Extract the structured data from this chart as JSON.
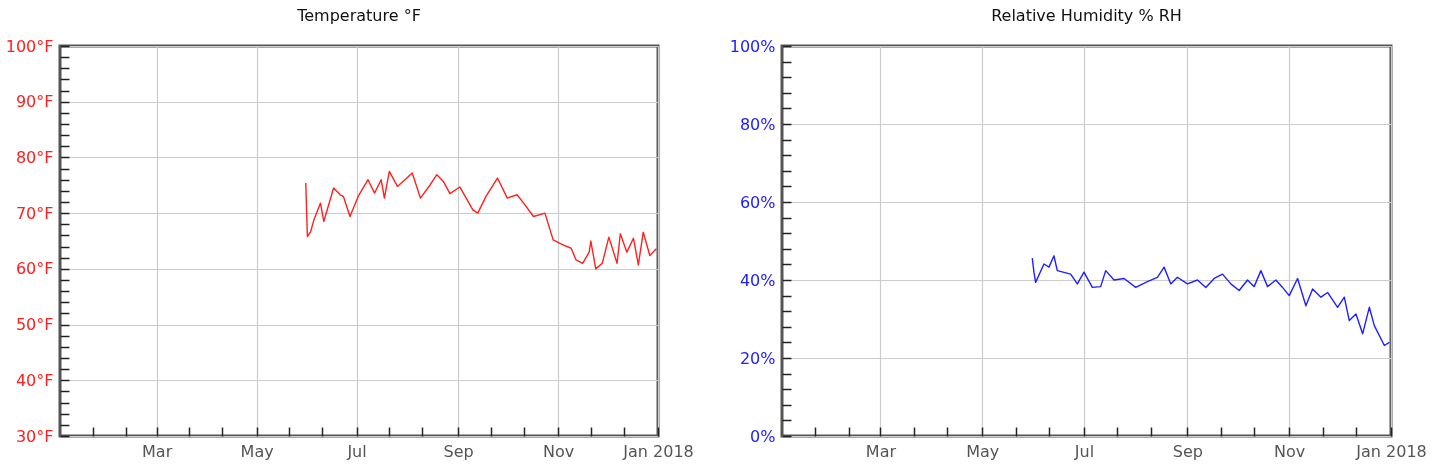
{
  "chart_data": [
    {
      "type": "line",
      "title": "Temperature °F",
      "grid": true,
      "xlim": [
        "2017-01-01",
        "2018-01-01"
      ],
      "ylim": [
        30,
        100
      ],
      "xticks": [
        {
          "value": "2017-01-21",
          "label": null
        },
        {
          "value": "2017-02-10",
          "label": null
        },
        {
          "value": "2017-03-01",
          "label": "Mar"
        },
        {
          "value": "2017-03-21",
          "label": null
        },
        {
          "value": "2017-04-10",
          "label": null
        },
        {
          "value": "2017-05-01",
          "label": "May"
        },
        {
          "value": "2017-05-21",
          "label": null
        },
        {
          "value": "2017-06-10",
          "label": null
        },
        {
          "value": "2017-07-01",
          "label": "Jul"
        },
        {
          "value": "2017-07-21",
          "label": null
        },
        {
          "value": "2017-08-10",
          "label": null
        },
        {
          "value": "2017-09-01",
          "label": "Sep"
        },
        {
          "value": "2017-09-21",
          "label": null
        },
        {
          "value": "2017-10-11",
          "label": null
        },
        {
          "value": "2017-11-01",
          "label": "Nov"
        },
        {
          "value": "2017-11-21",
          "label": null
        },
        {
          "value": "2017-12-11",
          "label": null
        },
        {
          "value": "2018-01-01",
          "label": "Jan 2018"
        }
      ],
      "yticks": [
        {
          "value": 30,
          "label": "30°F"
        },
        {
          "value": 32,
          "label": null
        },
        {
          "value": 34,
          "label": null
        },
        {
          "value": 36,
          "label": null
        },
        {
          "value": 38,
          "label": null
        },
        {
          "value": 40,
          "label": "40°F"
        },
        {
          "value": 42,
          "label": null
        },
        {
          "value": 44,
          "label": null
        },
        {
          "value": 46,
          "label": null
        },
        {
          "value": 48,
          "label": null
        },
        {
          "value": 50,
          "label": "50°F"
        },
        {
          "value": 52,
          "label": null
        },
        {
          "value": 54,
          "label": null
        },
        {
          "value": 56,
          "label": null
        },
        {
          "value": 58,
          "label": null
        },
        {
          "value": 60,
          "label": "60°F"
        },
        {
          "value": 62,
          "label": null
        },
        {
          "value": 64,
          "label": null
        },
        {
          "value": 66,
          "label": null
        },
        {
          "value": 68,
          "label": null
        },
        {
          "value": 70,
          "label": "70°F"
        },
        {
          "value": 72,
          "label": null
        },
        {
          "value": 74,
          "label": null
        },
        {
          "value": 76,
          "label": null
        },
        {
          "value": 78,
          "label": null
        },
        {
          "value": 80,
          "label": "80°F"
        },
        {
          "value": 82,
          "label": null
        },
        {
          "value": 84,
          "label": null
        },
        {
          "value": 86,
          "label": null
        },
        {
          "value": 88,
          "label": null
        },
        {
          "value": 90,
          "label": "90°F"
        },
        {
          "value": 92,
          "label": null
        },
        {
          "value": 94,
          "label": null
        },
        {
          "value": 96,
          "label": null
        },
        {
          "value": 98,
          "label": null
        },
        {
          "value": 100,
          "label": "100°F"
        }
      ],
      "x": [
        "2017-05-31",
        "2017-06-01",
        "2017-06-03",
        "2017-06-05",
        "2017-06-09",
        "2017-06-11",
        "2017-06-17",
        "2017-06-21",
        "2017-06-23",
        "2017-06-27",
        "2017-07-02",
        "2017-07-08",
        "2017-07-12",
        "2017-07-16",
        "2017-07-18",
        "2017-07-21",
        "2017-07-26",
        "2017-08-04",
        "2017-08-09",
        "2017-08-15",
        "2017-08-19",
        "2017-08-23",
        "2017-08-27",
        "2017-09-02",
        "2017-09-10",
        "2017-09-13",
        "2017-09-18",
        "2017-09-25",
        "2017-10-01",
        "2017-10-07",
        "2017-10-11",
        "2017-10-17",
        "2017-10-24",
        "2017-10-29",
        "2017-11-04",
        "2017-11-09",
        "2017-11-12",
        "2017-11-16",
        "2017-11-20",
        "2017-11-21",
        "2017-11-24",
        "2017-11-28",
        "2017-12-02",
        "2017-12-07",
        "2017-12-09",
        "2017-12-13",
        "2017-12-17",
        "2017-12-20",
        "2017-12-23",
        "2017-12-27",
        "2017-12-31"
      ],
      "series": [
        {
          "color": "#ff2020",
          "values": [
            75.4,
            65.8,
            66.7,
            68.8,
            71.8,
            68.5,
            74.5,
            73.3,
            73,
            69.4,
            73,
            76,
            73.6,
            76,
            72.7,
            77.5,
            74.8,
            77.2,
            72.7,
            75.1,
            76.9,
            75.7,
            73.5,
            74.7,
            70.6,
            70,
            73,
            76.3,
            72.7,
            73.3,
            71.8,
            69.4,
            70,
            65.2,
            64.3,
            63.7,
            61.6,
            61,
            63,
            65,
            60,
            61,
            65.7,
            61,
            66.3,
            63,
            65.5,
            60.7,
            66.6,
            62.4,
            63.6
          ]
        }
      ]
    },
    {
      "type": "line",
      "title": "Relative Humidity % RH",
      "grid": true,
      "xlim": [
        "2017-01-01",
        "2018-01-01"
      ],
      "ylim": [
        0,
        100
      ],
      "xticks": [
        {
          "value": "2017-01-21",
          "label": null
        },
        {
          "value": "2017-02-10",
          "label": null
        },
        {
          "value": "2017-03-01",
          "label": "Mar"
        },
        {
          "value": "2017-03-21",
          "label": null
        },
        {
          "value": "2017-04-10",
          "label": null
        },
        {
          "value": "2017-05-01",
          "label": "May"
        },
        {
          "value": "2017-05-21",
          "label": null
        },
        {
          "value": "2017-06-10",
          "label": null
        },
        {
          "value": "2017-07-01",
          "label": "Jul"
        },
        {
          "value": "2017-07-21",
          "label": null
        },
        {
          "value": "2017-08-10",
          "label": null
        },
        {
          "value": "2017-09-01",
          "label": "Sep"
        },
        {
          "value": "2017-09-21",
          "label": null
        },
        {
          "value": "2017-10-11",
          "label": null
        },
        {
          "value": "2017-11-01",
          "label": "Nov"
        },
        {
          "value": "2017-11-21",
          "label": null
        },
        {
          "value": "2017-12-11",
          "label": null
        },
        {
          "value": "2018-01-01",
          "label": "Jan 2018"
        }
      ],
      "yticks": [
        {
          "value": 0,
          "label": "0%"
        },
        {
          "value": 4,
          "label": null
        },
        {
          "value": 8,
          "label": null
        },
        {
          "value": 12,
          "label": null
        },
        {
          "value": 16,
          "label": null
        },
        {
          "value": 20,
          "label": "20%"
        },
        {
          "value": 24,
          "label": null
        },
        {
          "value": 28,
          "label": null
        },
        {
          "value": 32,
          "label": null
        },
        {
          "value": 36,
          "label": null
        },
        {
          "value": 40,
          "label": "40%"
        },
        {
          "value": 44,
          "label": null
        },
        {
          "value": 48,
          "label": null
        },
        {
          "value": 52,
          "label": null
        },
        {
          "value": 56,
          "label": null
        },
        {
          "value": 60,
          "label": "60%"
        },
        {
          "value": 64,
          "label": null
        },
        {
          "value": 68,
          "label": null
        },
        {
          "value": 72,
          "label": null
        },
        {
          "value": 76,
          "label": null
        },
        {
          "value": 80,
          "label": "80%"
        },
        {
          "value": 84,
          "label": null
        },
        {
          "value": 88,
          "label": null
        },
        {
          "value": 92,
          "label": null
        },
        {
          "value": 96,
          "label": null
        },
        {
          "value": 100,
          "label": "100%"
        }
      ],
      "x": [
        "2017-05-31",
        "2017-06-01",
        "2017-06-02",
        "2017-06-07",
        "2017-06-10",
        "2017-06-13",
        "2017-06-15",
        "2017-06-23",
        "2017-06-27",
        "2017-07-01",
        "2017-07-06",
        "2017-07-11",
        "2017-07-14",
        "2017-07-19",
        "2017-07-25",
        "2017-08-01",
        "2017-08-08",
        "2017-08-14",
        "2017-08-18",
        "2017-08-22",
        "2017-08-26",
        "2017-09-01",
        "2017-09-07",
        "2017-09-12",
        "2017-09-17",
        "2017-09-22",
        "2017-09-27",
        "2017-10-02",
        "2017-10-07",
        "2017-10-11",
        "2017-10-15",
        "2017-10-19",
        "2017-10-24",
        "2017-10-28",
        "2017-11-01",
        "2017-11-06",
        "2017-11-11",
        "2017-11-15",
        "2017-11-20",
        "2017-11-24",
        "2017-11-30",
        "2017-12-04",
        "2017-12-07",
        "2017-12-11",
        "2017-12-15",
        "2017-12-19",
        "2017-12-22",
        "2017-12-28",
        "2017-12-31"
      ],
      "series": [
        {
          "color": "#2020ff",
          "values": [
            45.6,
            42,
            39.4,
            44.1,
            43.3,
            46.2,
            42.4,
            41.5,
            39,
            42,
            38.1,
            38.3,
            42.4,
            40,
            40.4,
            38.1,
            39.6,
            40.7,
            43.3,
            39,
            40.7,
            39,
            40,
            38.1,
            40.4,
            41.5,
            39,
            37.3,
            40,
            38.3,
            42.4,
            38.3,
            40,
            38.1,
            36,
            40.4,
            33.4,
            37.7,
            35.6,
            36.8,
            33,
            35.6,
            29.6,
            31.3,
            26.2,
            33,
            28.3,
            23.2,
            24
          ]
        }
      ]
    }
  ]
}
